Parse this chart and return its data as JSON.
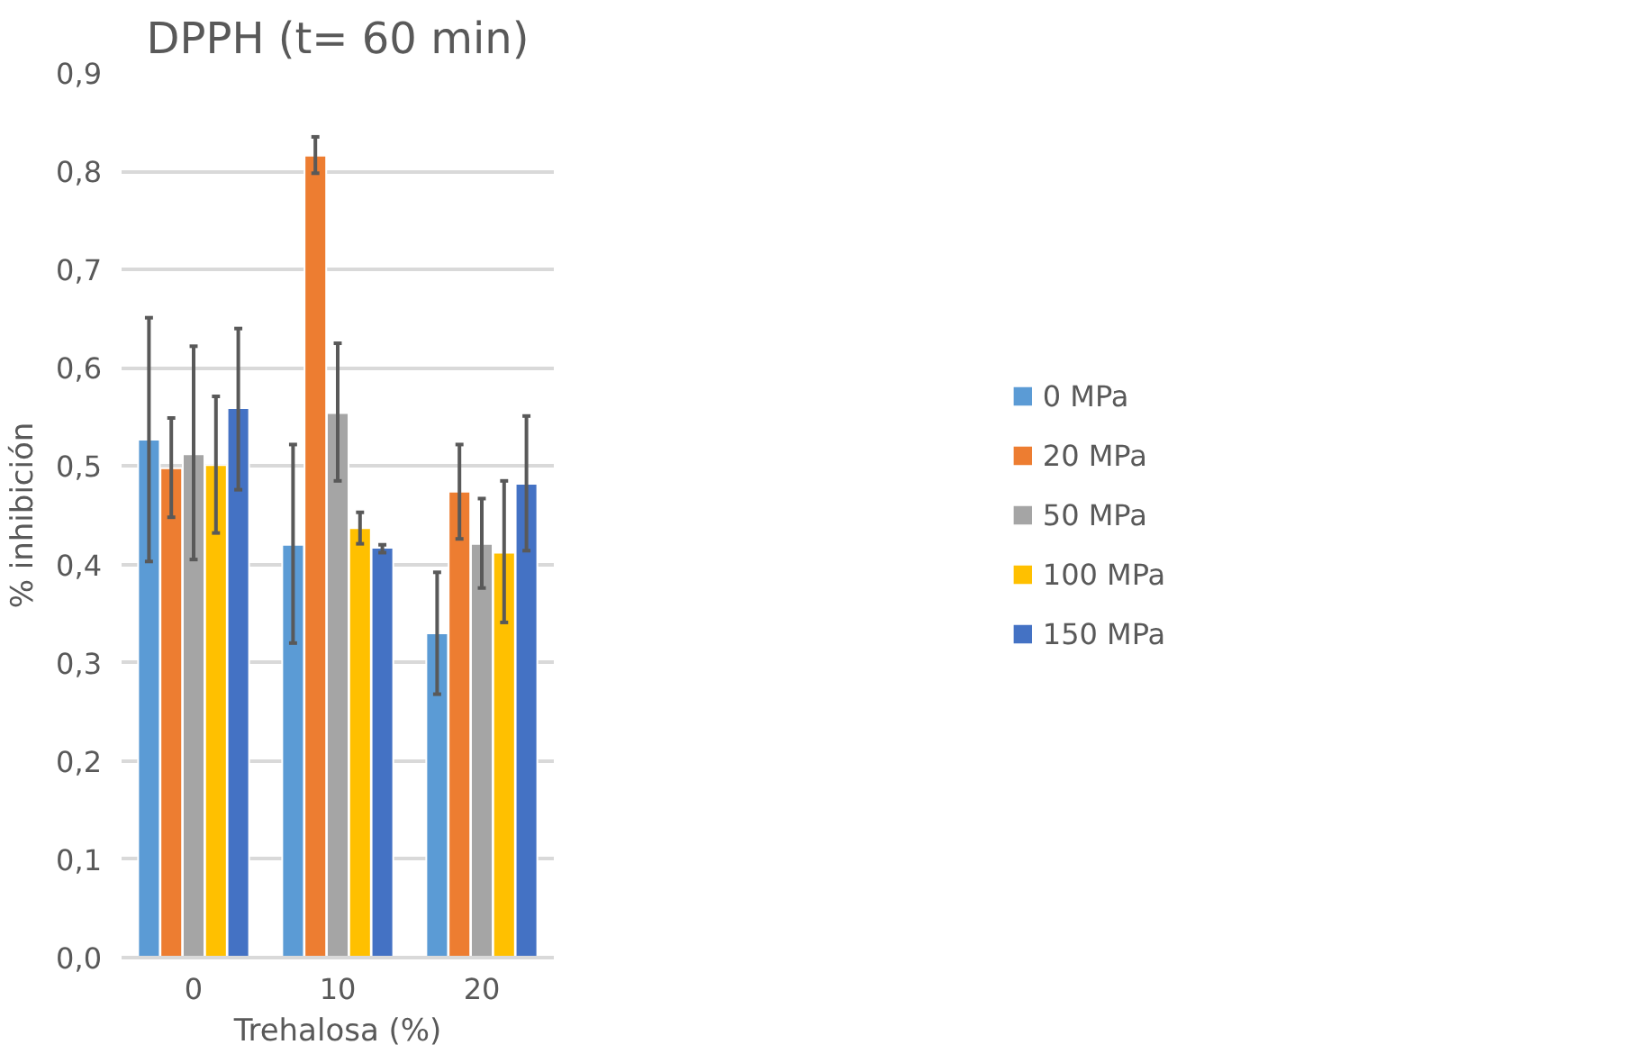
{
  "chart_data": {
    "type": "bar",
    "title": "DPPH (t= 60 min)",
    "xlabel": "Trehalosa (%)",
    "ylabel": "% inhibición",
    "categories": [
      "0",
      "10",
      "20"
    ],
    "series": [
      {
        "name": "0 MPa",
        "color": "#5b9bd5",
        "values": [
          0.527,
          0.42,
          0.33
        ],
        "errors": [
          [
            0.403,
            0.651
          ],
          [
            0.32,
            0.522
          ],
          [
            0.268,
            0.392
          ]
        ]
      },
      {
        "name": "20 MPa",
        "color": "#ed7d31",
        "values": [
          0.498,
          0.816,
          0.474
        ],
        "errors": [
          [
            0.448,
            0.549
          ],
          [
            0.798,
            0.835
          ],
          [
            0.426,
            0.522
          ]
        ]
      },
      {
        "name": "50 MPa",
        "color": "#a5a5a5",
        "values": [
          0.512,
          0.554,
          0.421
        ],
        "errors": [
          [
            0.405,
            0.622
          ],
          [
            0.485,
            0.625
          ],
          [
            0.376,
            0.467
          ]
        ]
      },
      {
        "name": "100 MPa",
        "color": "#ffc000",
        "values": [
          0.501,
          0.437,
          0.412
        ],
        "errors": [
          [
            0.432,
            0.571
          ],
          [
            0.421,
            0.453
          ],
          [
            0.341,
            0.485
          ]
        ]
      },
      {
        "name": "150 MPa",
        "color": "#4472c4",
        "values": [
          0.559,
          0.417,
          0.482
        ],
        "errors": [
          [
            0.476,
            0.64
          ],
          [
            0.412,
            0.42
          ],
          [
            0.414,
            0.551
          ]
        ]
      }
    ],
    "ylim": [
      0,
      0.9
    ],
    "yticks": [
      {
        "value": 0,
        "label": "0,0"
      },
      {
        "value": 0.1,
        "label": "0,1"
      },
      {
        "value": 0.2,
        "label": "0,2"
      },
      {
        "value": 0.3,
        "label": "0,3"
      },
      {
        "value": 0.4,
        "label": "0,4"
      },
      {
        "value": 0.5,
        "label": "0,5"
      },
      {
        "value": 0.6,
        "label": "0,6"
      },
      {
        "value": 0.7,
        "label": "0,7"
      },
      {
        "value": 0.8,
        "label": "0,8"
      },
      {
        "value": 0.9,
        "label": "0,9"
      }
    ],
    "grid": "y",
    "legend": "right"
  }
}
